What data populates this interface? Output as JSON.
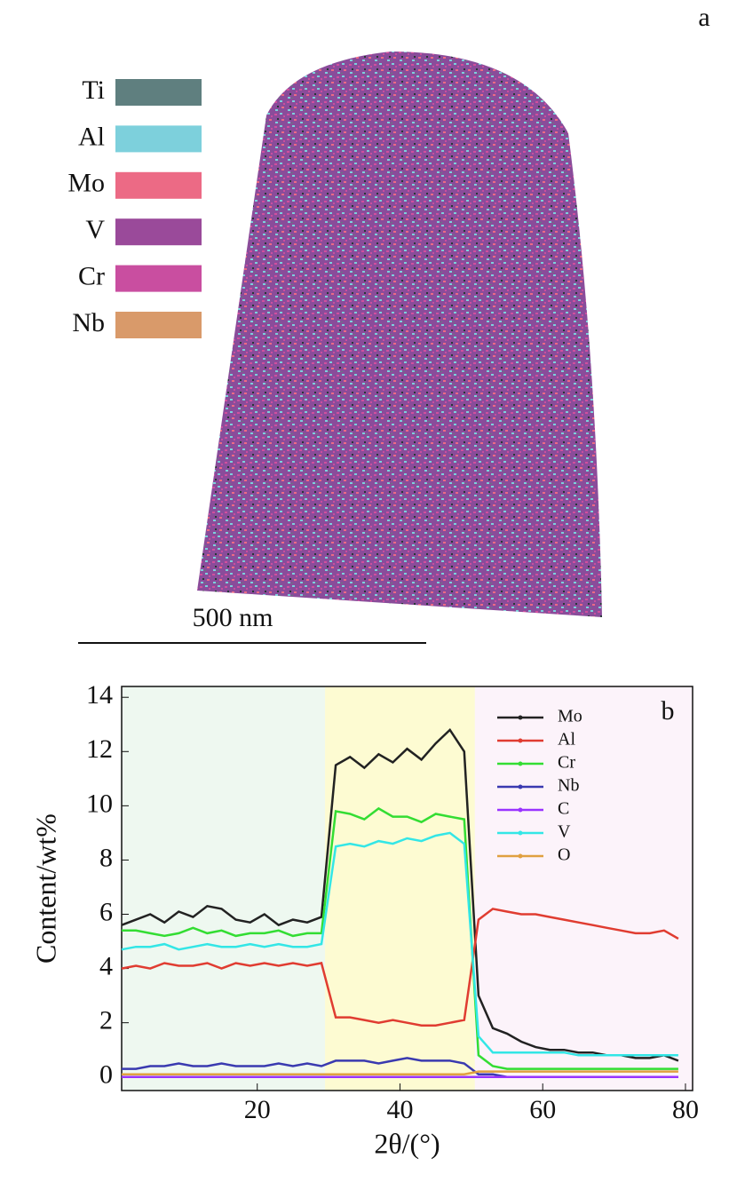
{
  "panel_a": {
    "label": "a",
    "scale_bar_label": "500 nm",
    "legend": [
      {
        "name": "Ti",
        "color": "#5f7f7f"
      },
      {
        "name": "Al",
        "color": "#7dd0dc"
      },
      {
        "name": "Mo",
        "color": "#ec6a85"
      },
      {
        "name": "V",
        "color": "#9a4a9a"
      },
      {
        "name": "Cr",
        "color": "#c94ea0"
      },
      {
        "name": "Nb",
        "color": "#d99a6a"
      }
    ]
  },
  "chart_data": {
    "type": "line",
    "label": "b",
    "xlabel": "2θ/(°)",
    "ylabel": "Content/wt%",
    "xlim": [
      1,
      81
    ],
    "ylim": [
      -0.5,
      14.4
    ],
    "xticks": [
      20,
      40,
      60,
      80
    ],
    "yticks": [
      0,
      2,
      4,
      6,
      8,
      10,
      12,
      14
    ],
    "regions": [
      {
        "from": 1,
        "to": 29.5,
        "color": "#eef8f0"
      },
      {
        "from": 29.5,
        "to": 50.5,
        "color": "#fdfbd2"
      },
      {
        "from": 50.5,
        "to": 81,
        "color": "#fcf3fa"
      }
    ],
    "x": [
      1,
      3,
      5,
      7,
      9,
      11,
      13,
      15,
      17,
      19,
      21,
      23,
      25,
      27,
      29,
      31,
      33,
      35,
      37,
      39,
      41,
      43,
      45,
      47,
      49,
      51,
      53,
      55,
      57,
      59,
      61,
      63,
      65,
      67,
      69,
      71,
      73,
      75,
      77,
      79
    ],
    "series": [
      {
        "name": "Mo",
        "color": "#222222",
        "values": [
          5.6,
          5.8,
          6.0,
          5.7,
          6.1,
          5.9,
          6.3,
          6.2,
          5.8,
          5.7,
          6.0,
          5.6,
          5.8,
          5.7,
          5.9,
          11.5,
          11.8,
          11.4,
          11.9,
          11.6,
          12.1,
          11.7,
          12.3,
          12.8,
          12.0,
          3.0,
          1.8,
          1.6,
          1.3,
          1.1,
          1.0,
          1.0,
          0.9,
          0.9,
          0.8,
          0.8,
          0.7,
          0.7,
          0.8,
          0.6
        ]
      },
      {
        "name": "Al",
        "color": "#e03c31",
        "values": [
          4.0,
          4.1,
          4.0,
          4.2,
          4.1,
          4.1,
          4.2,
          4.0,
          4.2,
          4.1,
          4.2,
          4.1,
          4.2,
          4.1,
          4.2,
          2.2,
          2.2,
          2.1,
          2.0,
          2.1,
          2.0,
          1.9,
          1.9,
          2.0,
          2.1,
          5.8,
          6.2,
          6.1,
          6.0,
          6.0,
          5.9,
          5.8,
          5.7,
          5.6,
          5.5,
          5.4,
          5.3,
          5.3,
          5.4,
          5.1
        ]
      },
      {
        "name": "Cr",
        "color": "#33dd33",
        "values": [
          5.4,
          5.4,
          5.3,
          5.2,
          5.3,
          5.5,
          5.3,
          5.4,
          5.2,
          5.3,
          5.3,
          5.4,
          5.2,
          5.3,
          5.3,
          9.8,
          9.7,
          9.5,
          9.9,
          9.6,
          9.6,
          9.4,
          9.7,
          9.6,
          9.5,
          0.8,
          0.4,
          0.3,
          0.3,
          0.3,
          0.3,
          0.3,
          0.3,
          0.3,
          0.3,
          0.3,
          0.3,
          0.3,
          0.3,
          0.3
        ]
      },
      {
        "name": "Nb",
        "color": "#3a3ab0",
        "values": [
          0.3,
          0.3,
          0.4,
          0.4,
          0.5,
          0.4,
          0.4,
          0.5,
          0.4,
          0.4,
          0.4,
          0.5,
          0.4,
          0.5,
          0.4,
          0.6,
          0.6,
          0.6,
          0.5,
          0.6,
          0.7,
          0.6,
          0.6,
          0.6,
          0.5,
          0.1,
          0.1,
          0,
          0,
          0,
          0,
          0,
          0,
          0,
          0,
          0,
          0,
          0,
          0,
          0
        ]
      },
      {
        "name": "C",
        "color": "#9933ff",
        "values": [
          0,
          0,
          0,
          0,
          0,
          0,
          0,
          0,
          0,
          0,
          0,
          0,
          0,
          0,
          0,
          0,
          0,
          0,
          0,
          0,
          0,
          0,
          0,
          0,
          0,
          0,
          0,
          0,
          0,
          0,
          0,
          0,
          0,
          0,
          0,
          0,
          0,
          0,
          0,
          0
        ]
      },
      {
        "name": "V",
        "color": "#33e6e6",
        "values": [
          4.7,
          4.8,
          4.8,
          4.9,
          4.7,
          4.8,
          4.9,
          4.8,
          4.8,
          4.9,
          4.8,
          4.9,
          4.8,
          4.8,
          4.9,
          8.5,
          8.6,
          8.5,
          8.7,
          8.6,
          8.8,
          8.7,
          8.9,
          9.0,
          8.6,
          1.5,
          0.9,
          0.9,
          0.9,
          0.9,
          0.9,
          0.9,
          0.8,
          0.8,
          0.8,
          0.8,
          0.8,
          0.8,
          0.8,
          0.8
        ]
      },
      {
        "name": "O",
        "color": "#e0a040",
        "values": [
          0.1,
          0.1,
          0.1,
          0.1,
          0.1,
          0.1,
          0.1,
          0.1,
          0.1,
          0.1,
          0.1,
          0.1,
          0.1,
          0.1,
          0.1,
          0.1,
          0.1,
          0.1,
          0.1,
          0.1,
          0.1,
          0.1,
          0.1,
          0.1,
          0.1,
          0.2,
          0.2,
          0.2,
          0.2,
          0.2,
          0.2,
          0.2,
          0.2,
          0.2,
          0.2,
          0.2,
          0.2,
          0.2,
          0.2,
          0.2
        ]
      }
    ]
  }
}
